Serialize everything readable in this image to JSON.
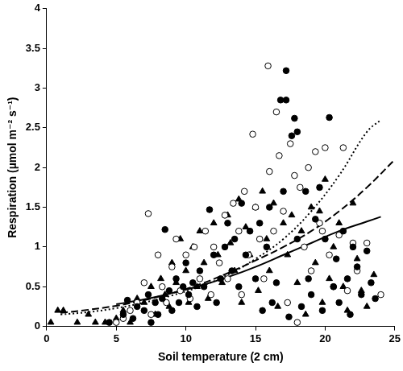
{
  "chart_data": {
    "type": "scatter",
    "x_label": "Soil temperature (2 cm)",
    "y_label": "Respiration (µmol m⁻² s⁻¹)",
    "xlim": [
      0,
      25
    ],
    "xticks": [
      0,
      5,
      10,
      15,
      20,
      25
    ],
    "ylim": [
      0,
      4
    ],
    "yticks": [
      0,
      0.5,
      1,
      1.5,
      2,
      2.5,
      3,
      3.5,
      4
    ],
    "grid": false,
    "series": [
      {
        "type": "scatter",
        "marker": "circle",
        "color": "#000000",
        "x": [
          4.5,
          5.5,
          5.8,
          6.2,
          6.5,
          7,
          7.3,
          7.5,
          7.8,
          8,
          8.3,
          8.5,
          8.8,
          9,
          9.3,
          9.5,
          9.8,
          10,
          10.2,
          10.5,
          10.8,
          11,
          11.3,
          11.7,
          12,
          12.2,
          12.5,
          12.8,
          13,
          13.3,
          13.5,
          13.8,
          14,
          14.3,
          14.6,
          15,
          15.3,
          15.5,
          15.8,
          16,
          16.2,
          16.5,
          16.8,
          17,
          17.2,
          17.2,
          17.4,
          17.6,
          17.8,
          18,
          18,
          18.3,
          18.6,
          18.8,
          19,
          19.3,
          19.6,
          19.8,
          20,
          20.3,
          20.6,
          20.8,
          21,
          21.3,
          21.6,
          21.8,
          22,
          22.3,
          22.6,
          23,
          23.3,
          23.6
        ],
        "values": [
          0.05,
          0.15,
          0.33,
          0.1,
          0.25,
          0.2,
          0.4,
          0.05,
          0.3,
          0.15,
          0.35,
          1.22,
          0.45,
          0.2,
          0.6,
          0.3,
          0.5,
          0.8,
          0.4,
          0.55,
          0.25,
          0.7,
          0.5,
          1.47,
          0.9,
          0.3,
          0.6,
          1.0,
          1.3,
          0.7,
          1.1,
          0.5,
          1.55,
          0.9,
          1.2,
          0.6,
          1.3,
          0.2,
          1.0,
          1.5,
          0.3,
          0.55,
          2.85,
          1.7,
          3.22,
          2.85,
          0.12,
          2.4,
          2.62,
          2.45,
          1.1,
          0.25,
          1.7,
          0.6,
          0.4,
          1.35,
          1.75,
          0.2,
          1.1,
          2.63,
          0.5,
          0.85,
          0.3,
          1.2,
          0.6,
          0.15,
          1.0,
          0.75,
          0.4,
          0.95,
          0.55,
          0.35
        ]
      },
      {
        "type": "scatter",
        "marker": "open_circle",
        "color": "#000000",
        "x": [
          5,
          5.5,
          6,
          6.5,
          7,
          7.3,
          7.5,
          8,
          8.3,
          8.6,
          9,
          9.3,
          9.6,
          10,
          10.3,
          10.6,
          11,
          11.4,
          11.8,
          12,
          12.4,
          12.8,
          13,
          13.4,
          13.8,
          14,
          14.2,
          14.5,
          14.8,
          15,
          15.3,
          15.6,
          15.9,
          16,
          16.3,
          16.5,
          16.7,
          17,
          17.3,
          17.5,
          17.8,
          18,
          18.2,
          18.5,
          18.8,
          19,
          19.3,
          19.6,
          19.8,
          20,
          20.3,
          20.6,
          21,
          21.3,
          21.6,
          22,
          22.3,
          23,
          24
        ],
        "values": [
          0.05,
          0.1,
          0.2,
          0.3,
          0.55,
          1.42,
          0.15,
          0.9,
          0.5,
          0.3,
          0.75,
          1.1,
          0.45,
          0.9,
          0.35,
          1.0,
          0.6,
          1.2,
          0.4,
          1.0,
          0.8,
          1.4,
          0.6,
          1.55,
          1.2,
          0.4,
          1.7,
          0.9,
          2.42,
          1.5,
          1.1,
          0.6,
          3.28,
          1.95,
          1.2,
          2.7,
          2.15,
          1.45,
          0.3,
          2.3,
          1.9,
          0.05,
          1.75,
          1.0,
          2.0,
          0.7,
          2.2,
          1.3,
          1.2,
          2.25,
          0.9,
          0.5,
          1.15,
          2.25,
          0.45,
          1.05,
          0.7,
          1.05,
          0.4
        ]
      },
      {
        "type": "scatter",
        "marker": "triangle",
        "color": "#000000",
        "x": [
          0.3,
          0.8,
          1.2,
          2.2,
          3,
          3.5,
          4.2,
          5,
          5.5,
          6,
          6.5,
          7,
          7.5,
          7.8,
          8.2,
          8.5,
          8.8,
          9,
          9.3,
          9.6,
          10,
          10.2,
          10.5,
          10.8,
          11,
          11.3,
          11.6,
          12,
          12.3,
          12.6,
          13,
          13.2,
          13.5,
          13.8,
          14,
          14.3,
          14.6,
          15,
          15.2,
          15.5,
          15.8,
          16,
          16.3,
          16.6,
          17,
          17.3,
          17.6,
          18,
          18.3,
          18.6,
          19,
          19.3,
          19.6,
          19.8,
          20,
          20.3,
          20.6,
          21,
          21.3,
          21.6,
          22,
          22.3,
          22.6,
          23,
          23.5
        ],
        "values": [
          0.05,
          0.2,
          0.2,
          0.05,
          0.15,
          0.05,
          0.05,
          0.1,
          0.2,
          0.05,
          0.35,
          0.3,
          0.5,
          0.15,
          0.6,
          0.4,
          0.25,
          0.8,
          0.55,
          1.1,
          0.7,
          0.3,
          1.0,
          0.5,
          1.2,
          0.8,
          0.35,
          1.3,
          0.9,
          0.55,
          1.4,
          1.05,
          0.7,
          1.6,
          0.3,
          1.25,
          0.9,
          1.5,
          0.45,
          1.7,
          1.1,
          0.7,
          1.55,
          0.25,
          1.3,
          0.9,
          1.4,
          0.55,
          1.2,
          0.15,
          1.5,
          0.8,
          1.45,
          0.3,
          1.85,
          0.6,
          1.0,
          1.3,
          0.5,
          0.2,
          1.55,
          0.85,
          0.45,
          0.25,
          0.65
        ]
      },
      {
        "type": "line",
        "line_style": "dotted",
        "color": "#000000",
        "x": [
          1,
          3,
          5,
          7,
          9,
          11,
          13,
          15,
          17,
          19,
          21,
          23,
          24
        ],
        "values": [
          0.15,
          0.18,
          0.23,
          0.3,
          0.39,
          0.5,
          0.65,
          0.85,
          1.1,
          1.45,
          1.9,
          2.45,
          2.6
        ]
      },
      {
        "type": "line",
        "line_style": "dashed",
        "color": "#000000",
        "x": [
          1,
          3,
          5,
          7,
          9,
          11,
          13,
          15,
          17,
          19,
          21,
          23,
          25
        ],
        "values": [
          0.17,
          0.21,
          0.26,
          0.33,
          0.42,
          0.53,
          0.67,
          0.83,
          1.0,
          1.2,
          1.45,
          1.75,
          2.1
        ]
      },
      {
        "type": "line",
        "line_style": "solid",
        "color": "#000000",
        "x": [
          5,
          7,
          9,
          11,
          13,
          15,
          17,
          19,
          21,
          23,
          24
        ],
        "values": [
          0.28,
          0.34,
          0.42,
          0.51,
          0.62,
          0.75,
          0.9,
          1.05,
          1.2,
          1.32,
          1.38
        ]
      }
    ]
  }
}
